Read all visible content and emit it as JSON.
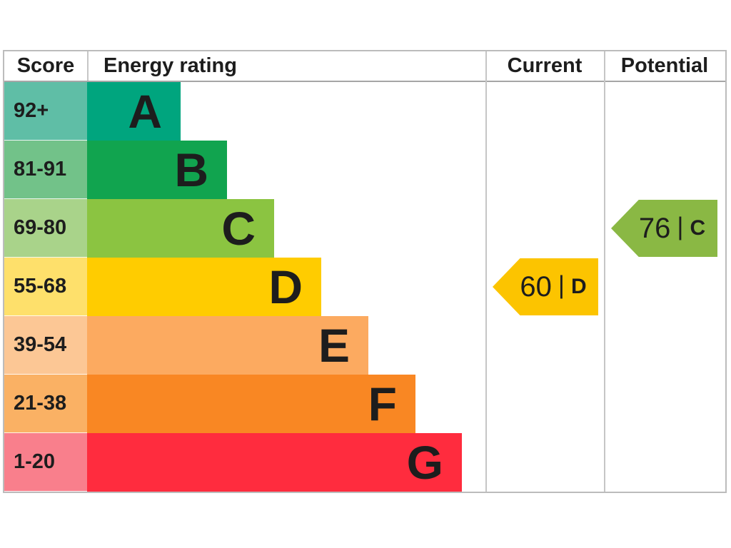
{
  "header": {
    "score": "Score",
    "energy_rating": "Energy rating",
    "current": "Current",
    "potential": "Potential"
  },
  "chart_data": {
    "type": "bar",
    "subtype": "epc-energy-rating-chart",
    "bands": [
      {
        "letter": "A",
        "score": "92+",
        "bar_color": "#00a57e",
        "score_tint": "#5fbea6"
      },
      {
        "letter": "B",
        "score": "81-91",
        "bar_color": "#11a44f",
        "score_tint": "#72c289"
      },
      {
        "letter": "C",
        "score": "69-80",
        "bar_color": "#8bc441",
        "score_tint": "#a9d38a"
      },
      {
        "letter": "D",
        "score": "55-68",
        "bar_color": "#ffcc00",
        "score_tint": "#fee06b"
      },
      {
        "letter": "E",
        "score": "39-54",
        "bar_color": "#fcaa60",
        "score_tint": "#fcc795"
      },
      {
        "letter": "F",
        "score": "21-38",
        "bar_color": "#f98723",
        "score_tint": "#fab164"
      },
      {
        "letter": "G",
        "score": "1-20",
        "bar_color": "#ff2c3e",
        "score_tint": "#f97f8c"
      }
    ],
    "markers": {
      "current": {
        "value": "60",
        "divider": "|",
        "letter": "D",
        "band": "D",
        "color": "#fcc400"
      },
      "potential": {
        "value": "76",
        "divider": "|",
        "letter": "C",
        "band": "C",
        "color": "#8ab844"
      }
    }
  }
}
